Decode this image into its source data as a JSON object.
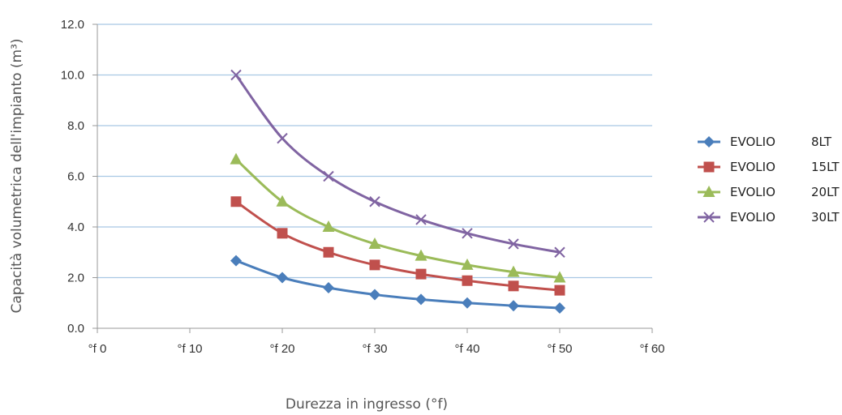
{
  "chart_data": {
    "type": "line",
    "xlabel": "Durezza in ingresso (°f)",
    "ylabel": "Capacità volumetrica dell'impianto (m³)",
    "xlim": [
      0,
      60
    ],
    "ylim": [
      0,
      12
    ],
    "x_ticks": [
      {
        "value": 0,
        "label": "°f 0"
      },
      {
        "value": 10,
        "label": "°f 10"
      },
      {
        "value": 20,
        "label": "°f 20"
      },
      {
        "value": 30,
        "label": "°f 30"
      },
      {
        "value": 40,
        "label": "°f 40"
      },
      {
        "value": 50,
        "label": "°f 50"
      },
      {
        "value": 60,
        "label": "°f 60"
      }
    ],
    "y_ticks": [
      {
        "value": 0,
        "label": "0.0"
      },
      {
        "value": 2,
        "label": "2.0"
      },
      {
        "value": 4,
        "label": "4.0"
      },
      {
        "value": 6,
        "label": "6.0"
      },
      {
        "value": 8,
        "label": "8.0"
      },
      {
        "value": 10,
        "label": "10.0"
      },
      {
        "value": 12,
        "label": "12.0"
      }
    ],
    "grid": "horizontal",
    "legend_position": "right",
    "x": [
      15,
      20,
      25,
      30,
      35,
      40,
      45,
      50
    ],
    "series": [
      {
        "name": "EVOLIO",
        "size": "8LT",
        "marker": "diamond",
        "color": "#4a7ebb",
        "values": [
          2.67,
          2.0,
          1.6,
          1.33,
          1.14,
          1.0,
          0.89,
          0.8
        ]
      },
      {
        "name": "EVOLIO",
        "size": "15LT",
        "marker": "square",
        "color": "#c0504d",
        "values": [
          5.0,
          3.75,
          3.0,
          2.5,
          2.14,
          1.88,
          1.67,
          1.5
        ]
      },
      {
        "name": "EVOLIO",
        "size": "20LT",
        "marker": "triangle",
        "color": "#9bbb59",
        "values": [
          6.67,
          5.0,
          4.0,
          3.33,
          2.86,
          2.5,
          2.22,
          2.0
        ]
      },
      {
        "name": "EVOLIO",
        "size": "30LT",
        "marker": "x",
        "color": "#8064a2",
        "values": [
          10.0,
          7.5,
          6.0,
          5.0,
          4.29,
          3.75,
          3.33,
          3.0
        ]
      }
    ]
  }
}
